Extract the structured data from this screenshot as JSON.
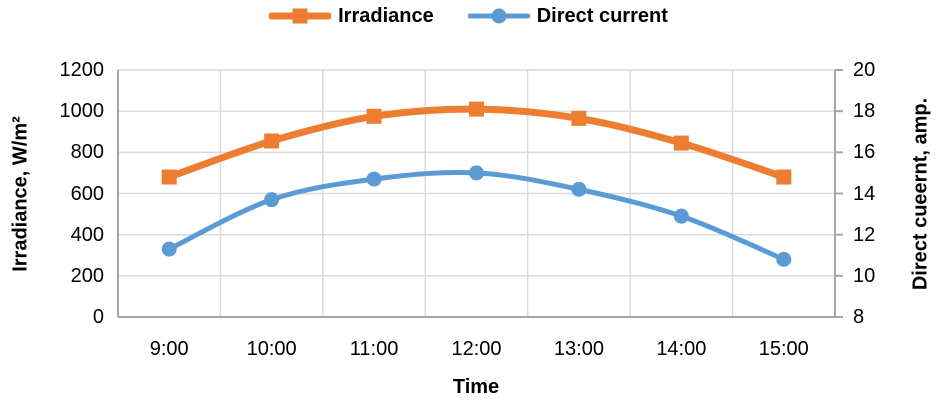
{
  "chart_data": {
    "type": "line",
    "title": "",
    "categories": [
      "9:00",
      "10:00",
      "11:00",
      "12:00",
      "13:00",
      "14:00",
      "15:00"
    ],
    "x_axis": {
      "label": "Time"
    },
    "left_axis": {
      "label": "Irradiance, W/m²",
      "min": 0,
      "max": 1200,
      "ticks": [
        0,
        200,
        400,
        600,
        800,
        1000,
        1200
      ]
    },
    "right_axis": {
      "label": "Direct cueernt, amp.",
      "min": 8,
      "max": 20,
      "ticks": [
        8,
        10,
        12,
        14,
        16,
        18,
        20
      ]
    },
    "series": [
      {
        "name": "Irradiance",
        "axis": "left",
        "color": "#ED7D31",
        "marker": "square",
        "line_width": 7,
        "values": [
          680,
          855,
          975,
          1010,
          965,
          845,
          680
        ]
      },
      {
        "name": "Direct current",
        "axis": "right",
        "color": "#5B9BD5",
        "marker": "circle",
        "line_width": 5,
        "values": [
          11.3,
          13.7,
          14.7,
          15.0,
          14.2,
          12.9,
          10.8
        ]
      }
    ],
    "grid": true,
    "smooth_lines": true,
    "legend_position": "top",
    "colors": {
      "gridline": "#D9D9D9",
      "axis_line": "#A6A6A6",
      "text": "#000000",
      "background": "#FFFFFF"
    }
  }
}
